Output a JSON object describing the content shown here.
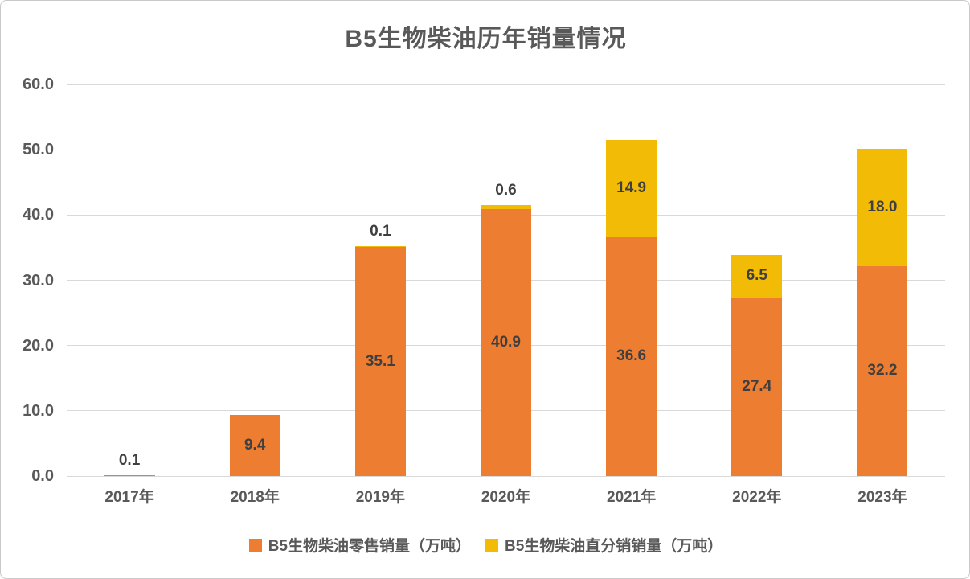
{
  "chart_data": {
    "type": "bar",
    "stacked": true,
    "title": "B5生物柴油历年销量情况",
    "categories": [
      "2017年",
      "2018年",
      "2019年",
      "2020年",
      "2021年",
      "2022年",
      "2023年"
    ],
    "series": [
      {
        "name": "B5生物柴油零售销量（万吨）",
        "key": "retail",
        "color": "#ED7D31",
        "values": [
          0.1,
          9.4,
          35.1,
          40.9,
          36.6,
          27.4,
          32.2
        ]
      },
      {
        "name": "B5生物柴油直分销销量（万吨）",
        "key": "direct",
        "color": "#F2BB05",
        "values": [
          null,
          null,
          0.1,
          0.6,
          14.9,
          6.5,
          18.0
        ]
      }
    ],
    "y_ticks": [
      "60.0",
      "50.0",
      "40.0",
      "30.0",
      "20.0",
      "10.0",
      "0.0"
    ],
    "ylim": [
      0,
      60
    ],
    "xlabel": "",
    "ylabel": "",
    "grid": true,
    "legend_position": "bottom",
    "colors": {
      "title_text": "#595959",
      "axis_text": "#595959",
      "data_label_text": "#3F3F3F",
      "gridline": "#D9D9D9",
      "background": "#FFFFFF",
      "frame_border": "#C9C9C9"
    }
  }
}
